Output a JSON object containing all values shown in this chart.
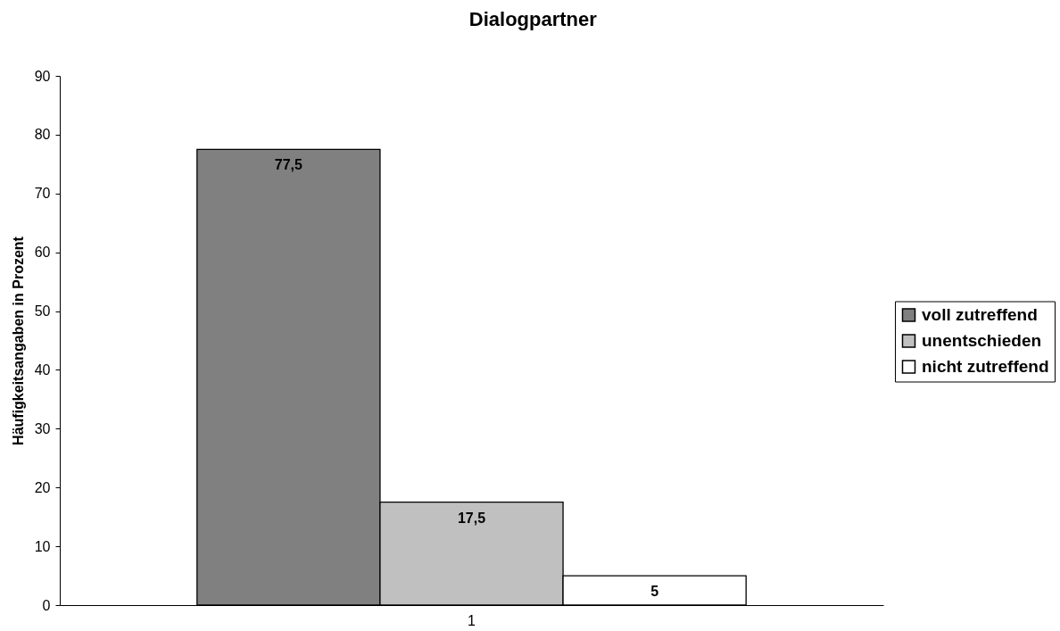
{
  "chart_data": {
    "type": "bar",
    "title": "Dialogpartner",
    "ylabel": "Häufigkeitsangaben in Prozent",
    "categories": [
      "1"
    ],
    "series": [
      {
        "name": "voll zutreffend",
        "color": "#808080",
        "values": [
          77.5
        ],
        "value_labels": [
          "77,5"
        ]
      },
      {
        "name": "unentschieden",
        "color": "#c0c0c0",
        "values": [
          17.5
        ],
        "value_labels": [
          "17,5"
        ]
      },
      {
        "name": "nicht zutreffend",
        "color": "#ffffff",
        "values": [
          5
        ],
        "value_labels": [
          "5"
        ]
      }
    ],
    "ylim": [
      0,
      90
    ],
    "yticks": [
      0,
      10,
      20,
      30,
      40,
      50,
      60,
      70,
      80,
      90
    ],
    "grid": false,
    "legend": "right"
  }
}
